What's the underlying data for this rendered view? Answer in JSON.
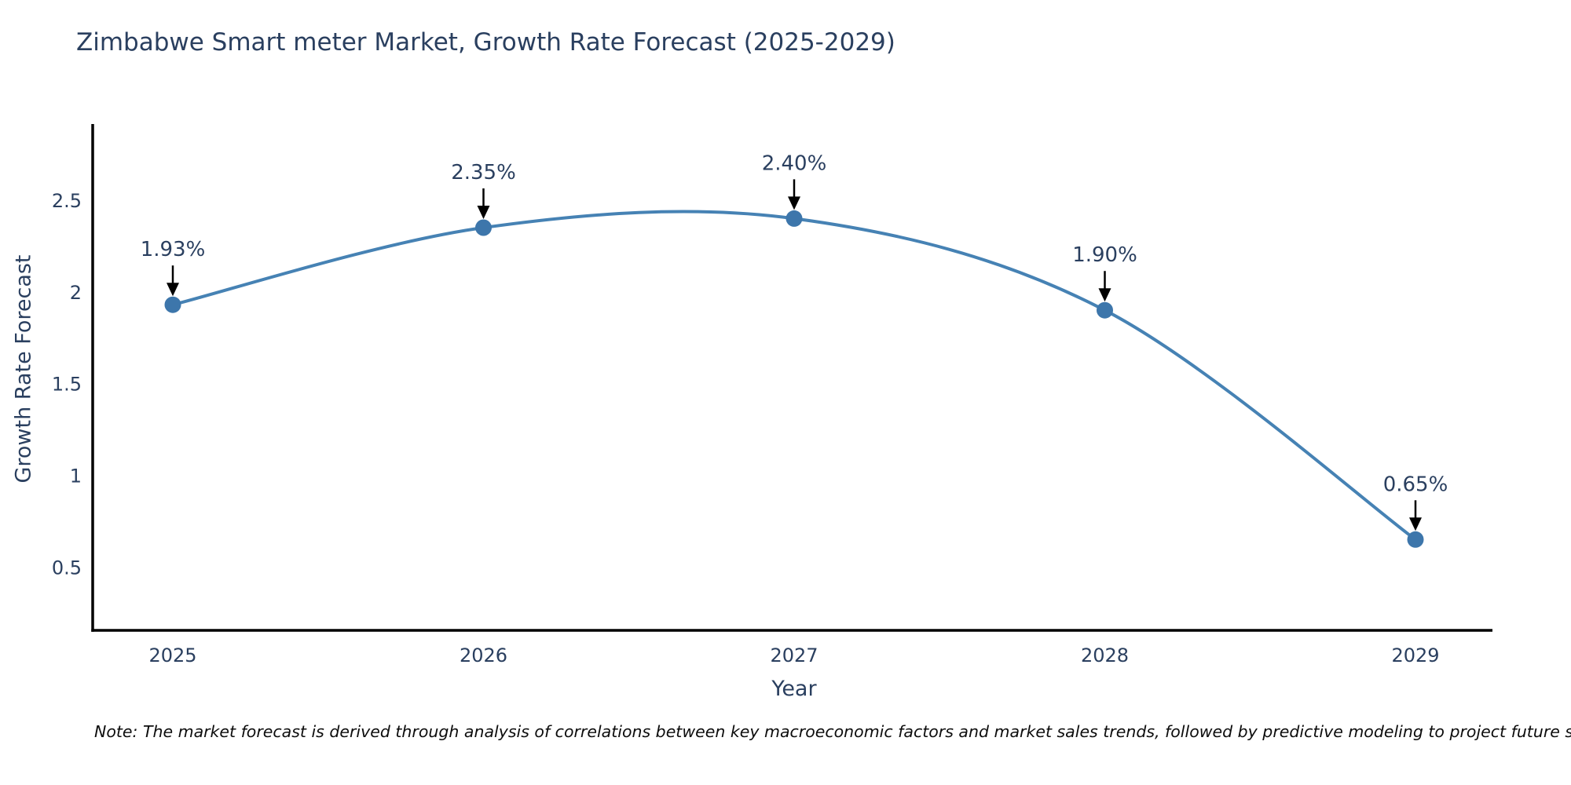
{
  "title": "Zimbabwe Smart meter Market, Growth Rate Forecast (2025-2029)",
  "note": "Note: The market forecast is derived through analysis of correlations between key macroeconomic factors and market sales trends, followed by predictive modeling to project future sales",
  "chart_data": {
    "type": "line",
    "title": "Zimbabwe Smart meter Market, Growth Rate Forecast (2025-2029)",
    "xlabel": "Year",
    "ylabel": "Growth Rate Forecast",
    "categories": [
      "2025",
      "2026",
      "2027",
      "2028",
      "2029"
    ],
    "series": [
      {
        "name": "Growth Rate Forecast",
        "values": [
          1.93,
          2.35,
          2.4,
          1.9,
          0.65
        ],
        "point_labels": [
          "1.93%",
          "2.35%",
          "2.40%",
          "1.90%",
          "0.65%"
        ]
      }
    ],
    "yticks": [
      0.5,
      1,
      1.5,
      2,
      2.5
    ],
    "ylim": [
      0.155,
      2.915
    ],
    "line_shape": "spline",
    "grid": false,
    "legend_visible": false,
    "colors": {
      "line": "#4682b4",
      "marker": "#3d76ab",
      "axis": "#000000",
      "tick_text": "#2a3f5f",
      "annotation_text": "#2a3f5f",
      "annotation_arrow": "#000000",
      "background": "#ffffff"
    }
  }
}
